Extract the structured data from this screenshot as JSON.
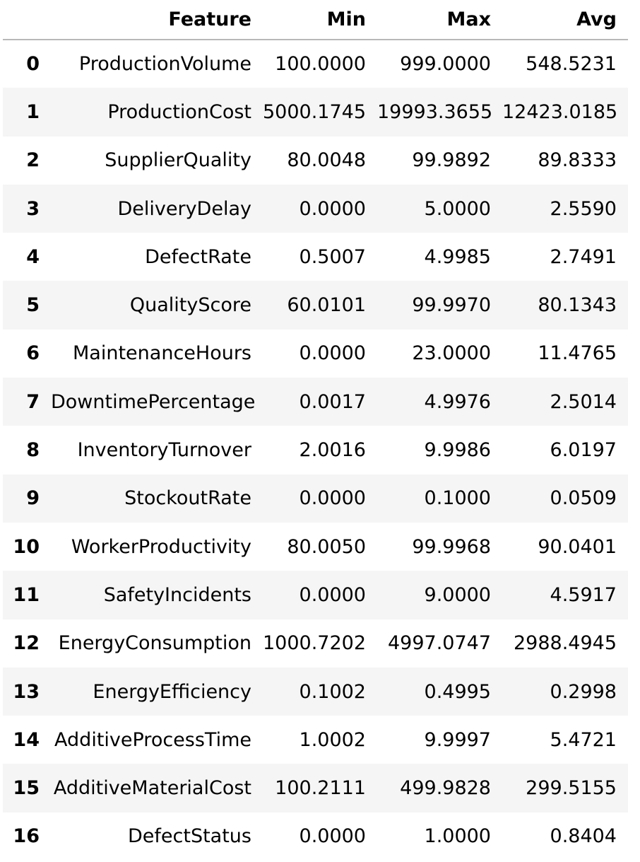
{
  "table": {
    "columns": [
      "",
      "Feature",
      "Min",
      "Max",
      "Avg"
    ],
    "rows": [
      {
        "index": "0",
        "feature": "ProductionVolume",
        "min": "100.0000",
        "max": "999.0000",
        "avg": "548.5231"
      },
      {
        "index": "1",
        "feature": "ProductionCost",
        "min": "5000.1745",
        "max": "19993.3655",
        "avg": "12423.0185"
      },
      {
        "index": "2",
        "feature": "SupplierQuality",
        "min": "80.0048",
        "max": "99.9892",
        "avg": "89.8333"
      },
      {
        "index": "3",
        "feature": "DeliveryDelay",
        "min": "0.0000",
        "max": "5.0000",
        "avg": "2.5590"
      },
      {
        "index": "4",
        "feature": "DefectRate",
        "min": "0.5007",
        "max": "4.9985",
        "avg": "2.7491"
      },
      {
        "index": "5",
        "feature": "QualityScore",
        "min": "60.0101",
        "max": "99.9970",
        "avg": "80.1343"
      },
      {
        "index": "6",
        "feature": "MaintenanceHours",
        "min": "0.0000",
        "max": "23.0000",
        "avg": "11.4765"
      },
      {
        "index": "7",
        "feature": "DowntimePercentage",
        "min": "0.0017",
        "max": "4.9976",
        "avg": "2.5014"
      },
      {
        "index": "8",
        "feature": "InventoryTurnover",
        "min": "2.0016",
        "max": "9.9986",
        "avg": "6.0197"
      },
      {
        "index": "9",
        "feature": "StockoutRate",
        "min": "0.0000",
        "max": "0.1000",
        "avg": "0.0509"
      },
      {
        "index": "10",
        "feature": "WorkerProductivity",
        "min": "80.0050",
        "max": "99.9968",
        "avg": "90.0401"
      },
      {
        "index": "11",
        "feature": "SafetyIncidents",
        "min": "0.0000",
        "max": "9.0000",
        "avg": "4.5917"
      },
      {
        "index": "12",
        "feature": "EnergyConsumption",
        "min": "1000.7202",
        "max": "4997.0747",
        "avg": "2988.4945"
      },
      {
        "index": "13",
        "feature": "EnergyEfficiency",
        "min": "0.1002",
        "max": "0.4995",
        "avg": "0.2998"
      },
      {
        "index": "14",
        "feature": "AdditiveProcessTime",
        "min": "1.0002",
        "max": "9.9997",
        "avg": "5.4721"
      },
      {
        "index": "15",
        "feature": "AdditiveMaterialCost",
        "min": "100.2111",
        "max": "499.9828",
        "avg": "299.5155"
      },
      {
        "index": "16",
        "feature": "DefectStatus",
        "min": "0.0000",
        "max": "1.0000",
        "avg": "0.8404"
      }
    ]
  }
}
